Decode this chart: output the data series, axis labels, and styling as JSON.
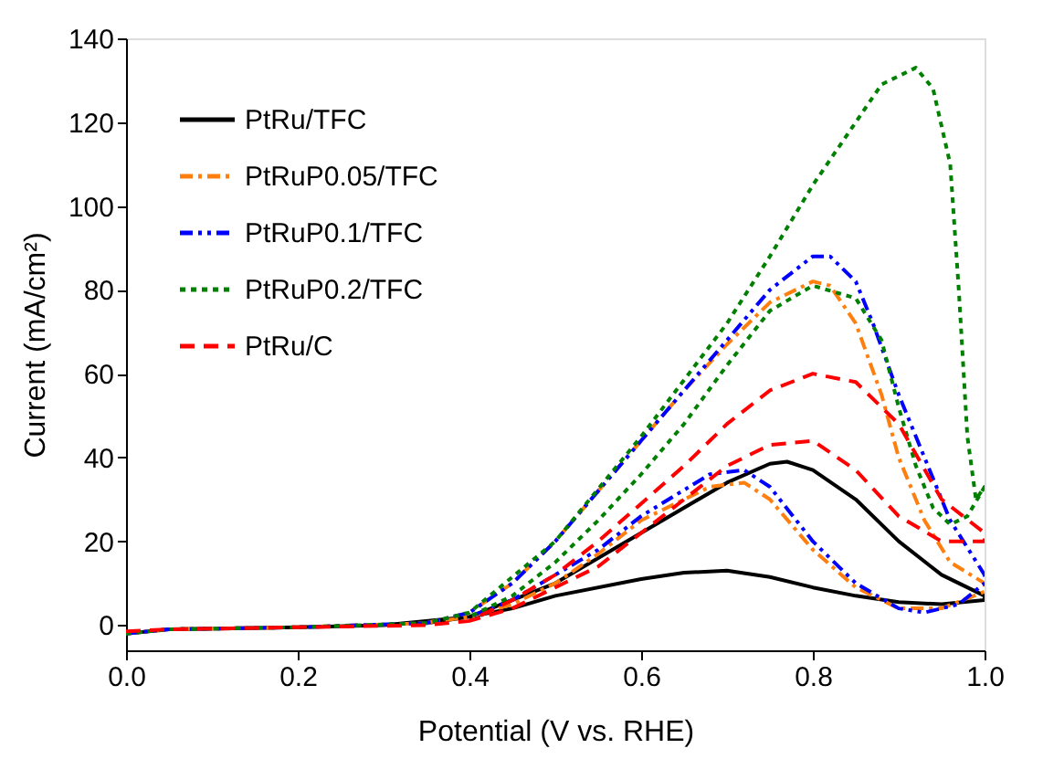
{
  "chart_data": {
    "type": "line",
    "xlabel": "Potential (V vs. RHE)",
    "ylabel": "Current (mA/cm²)",
    "xlim": [
      0,
      1
    ],
    "ylim": [
      -6,
      140
    ],
    "xticks": [
      {
        "value": 0,
        "label": "0.0"
      },
      {
        "value": 0.2,
        "label": "0.2"
      },
      {
        "value": 0.4,
        "label": "0.4"
      },
      {
        "value": 0.6,
        "label": "0.6"
      },
      {
        "value": 0.8,
        "label": "0.8"
      },
      {
        "value": 1,
        "label": "1.0"
      }
    ],
    "yticks": [
      0,
      20,
      40,
      60,
      80,
      100,
      120,
      140
    ],
    "grid": false,
    "legend": "top left",
    "series": [
      {
        "name": "PtRu/TFC",
        "color": "#000000",
        "line_style": "solid",
        "x": [
          0,
          0.05,
          0.2,
          0.3,
          0.4,
          0.5,
          0.6,
          0.7,
          0.75,
          0.77,
          0.8,
          0.85,
          0.9,
          0.95,
          1.0,
          1.0,
          0.95,
          0.9,
          0.85,
          0.8,
          0.75,
          0.7,
          0.65,
          0.6,
          0.5,
          0.45,
          0.4,
          0.35
        ],
        "values": [
          -2,
          -1,
          -0.5,
          0,
          2,
          10,
          22,
          34,
          38.5,
          39,
          37,
          30,
          20,
          12,
          7,
          6,
          5,
          5.5,
          7,
          9,
          11.5,
          13,
          12.5,
          11,
          7,
          4,
          2,
          0.5
        ]
      },
      {
        "name": "PtRuP0.05/TFC",
        "color": "#ff7f0e",
        "line_style": "dashdot",
        "x": [
          0,
          0.05,
          0.2,
          0.35,
          0.4,
          0.45,
          0.5,
          0.55,
          0.6,
          0.65,
          0.7,
          0.75,
          0.8,
          0.82,
          0.85,
          0.88,
          0.9,
          0.93,
          0.96,
          1.0,
          1.0,
          0.95,
          0.9,
          0.85,
          0.8,
          0.75,
          0.72,
          0.68,
          0.6,
          0.55,
          0.5,
          0.45,
          0.4,
          0.35
        ],
        "values": [
          -2,
          -1,
          -0.5,
          0.5,
          3,
          10,
          20,
          32,
          44,
          56,
          67,
          77,
          82,
          81,
          72,
          55,
          40,
          25,
          15,
          10,
          8,
          4,
          4,
          9,
          18,
          30,
          34,
          33,
          25,
          17,
          10,
          5,
          2,
          0.5
        ]
      },
      {
        "name": "PtRuP0.1/TFC",
        "color": "#0000ff",
        "line_style": "dashdotdot",
        "x": [
          0,
          0.05,
          0.2,
          0.35,
          0.4,
          0.45,
          0.5,
          0.55,
          0.6,
          0.65,
          0.7,
          0.75,
          0.8,
          0.82,
          0.85,
          0.87,
          0.9,
          0.93,
          0.96,
          1.0,
          1.0,
          0.97,
          0.93,
          0.9,
          0.85,
          0.8,
          0.75,
          0.72,
          0.68,
          0.6,
          0.55,
          0.5,
          0.45,
          0.4
        ],
        "values": [
          -2,
          -1,
          -0.5,
          0.5,
          3,
          10,
          20,
          32,
          44,
          56,
          68,
          80,
          88,
          88,
          82,
          72,
          55,
          40,
          25,
          12,
          10,
          5,
          3,
          4,
          10,
          20,
          33,
          37,
          36,
          26,
          18,
          12,
          6,
          2
        ]
      },
      {
        "name": "PtRuP0.2/TFC",
        "color": "#008000",
        "line_style": "dotted",
        "x": [
          0,
          0.05,
          0.2,
          0.35,
          0.4,
          0.5,
          0.6,
          0.7,
          0.75,
          0.8,
          0.85,
          0.88,
          0.9,
          0.92,
          0.94,
          0.96,
          0.97,
          0.98,
          0.99,
          1.0,
          1.0,
          0.98,
          0.96,
          0.94,
          0.92,
          0.9,
          0.88,
          0.85,
          0.8,
          0.75,
          0.7,
          0.65,
          0.6,
          0.55,
          0.5,
          0.45,
          0.4
        ],
        "values": [
          -2,
          -1,
          -0.5,
          0.5,
          3,
          20,
          45,
          72,
          88,
          105,
          120,
          129,
          131,
          133,
          128,
          110,
          80,
          45,
          30,
          33,
          33,
          26,
          24,
          28,
          38,
          52,
          68,
          78,
          81,
          75,
          62,
          48,
          36,
          25,
          15,
          7,
          2
        ]
      },
      {
        "name": "PtRu/C",
        "color": "#ff0000",
        "line_style": "dashed",
        "x": [
          0,
          0.05,
          0.2,
          0.35,
          0.4,
          0.45,
          0.5,
          0.55,
          0.6,
          0.65,
          0.7,
          0.75,
          0.8,
          0.85,
          0.9,
          0.95,
          1.0,
          1.0,
          0.95,
          0.9,
          0.85,
          0.8,
          0.75,
          0.7,
          0.65,
          0.6,
          0.55,
          0.5,
          0.45,
          0.4
        ],
        "values": [
          -1.5,
          -1,
          -0.5,
          0,
          1,
          6,
          12,
          20,
          29,
          38,
          48,
          56,
          60,
          58,
          48,
          30,
          22,
          20,
          20,
          26,
          37,
          44,
          43,
          38,
          30,
          22,
          14,
          9,
          4,
          1
        ]
      }
    ]
  }
}
